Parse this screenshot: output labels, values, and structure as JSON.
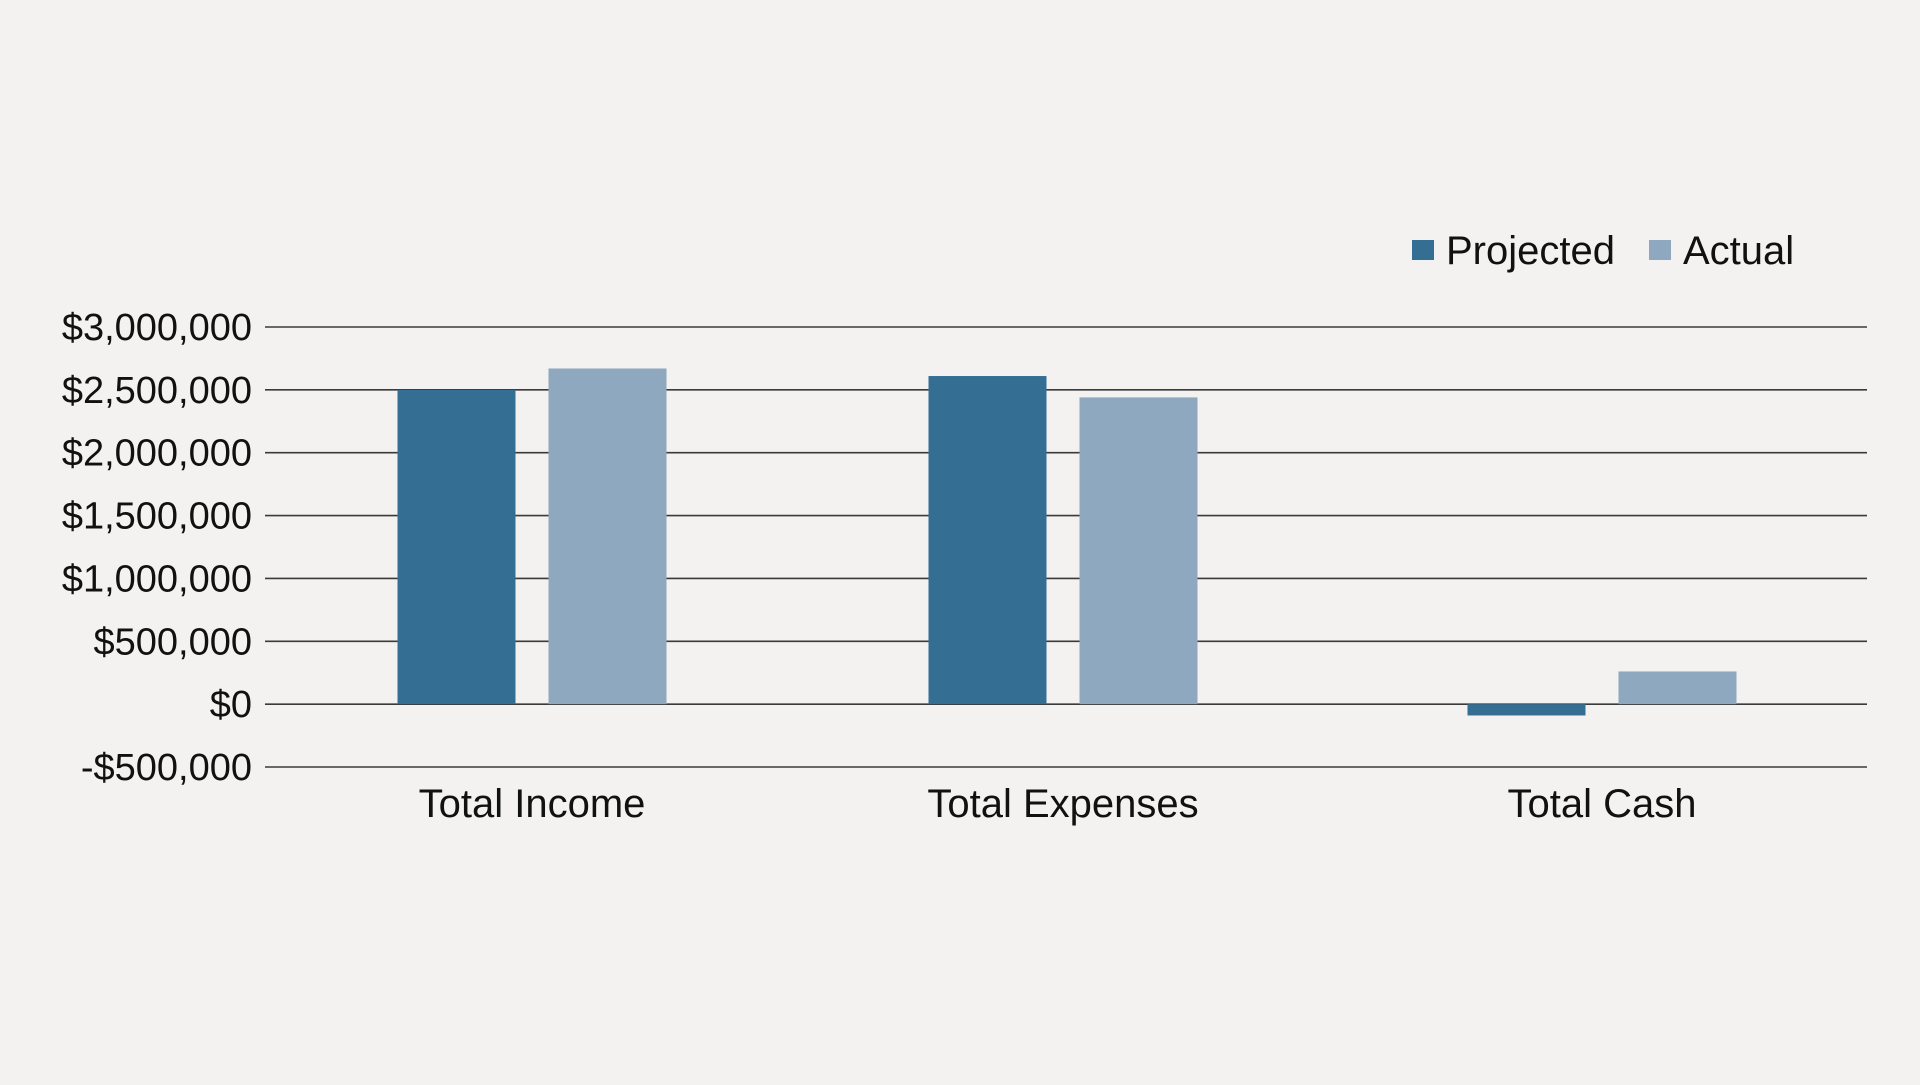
{
  "chart_data": {
    "type": "bar",
    "categories": [
      "Total Income",
      "Total Expenses",
      "Total Cash"
    ],
    "series": [
      {
        "name": "Projected",
        "color": "#356e93",
        "values": [
          2500000,
          2610000,
          -90000
        ]
      },
      {
        "name": "Actual",
        "color": "#8ea8bf",
        "values": [
          2670000,
          2440000,
          260000
        ]
      }
    ],
    "ylim": [
      -500000,
      3000000
    ],
    "yticks": [
      -500000,
      0,
      500000,
      1000000,
      1500000,
      2000000,
      2500000,
      3000000
    ],
    "ytick_labels": [
      "-$500,000",
      "$0",
      "$500,000",
      "$1,000,000",
      "$1,500,000",
      "$2,000,000",
      "$2,500,000",
      "$3,000,000"
    ],
    "grid": true,
    "legend_position": "top-right",
    "title": "",
    "xlabel": "",
    "ylabel": ""
  },
  "colors": {
    "background": "#f3f2f0",
    "gridline": "#3a3a3a"
  }
}
